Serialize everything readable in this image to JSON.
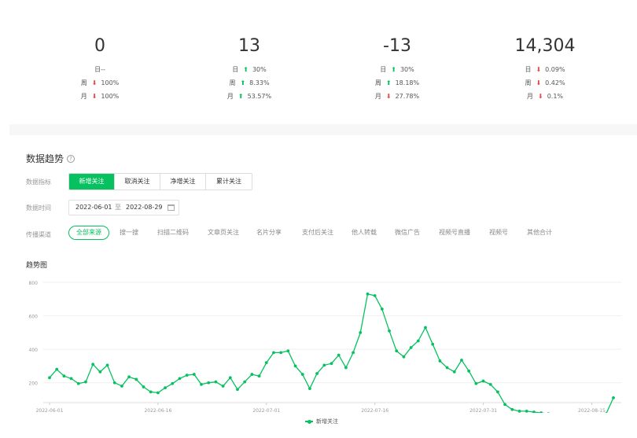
{
  "stats": [
    {
      "value": "0",
      "rows": [
        {
          "label": "日",
          "dir": "none",
          "pct": "--"
        },
        {
          "label": "周",
          "dir": "down",
          "pct": "100%"
        },
        {
          "label": "月",
          "dir": "down",
          "pct": "100%"
        }
      ]
    },
    {
      "value": "13",
      "rows": [
        {
          "label": "日",
          "dir": "up",
          "pct": "30%"
        },
        {
          "label": "周",
          "dir": "up",
          "pct": "8.33%"
        },
        {
          "label": "月",
          "dir": "up",
          "pct": "53.57%"
        }
      ]
    },
    {
      "value": "-13",
      "rows": [
        {
          "label": "日",
          "dir": "up",
          "pct": "30%"
        },
        {
          "label": "周",
          "dir": "up",
          "pct": "18.18%"
        },
        {
          "label": "月",
          "dir": "down",
          "pct": "27.78%"
        }
      ]
    },
    {
      "value": "14,304",
      "rows": [
        {
          "label": "日",
          "dir": "down",
          "pct": "0.09%"
        },
        {
          "label": "周",
          "dir": "down",
          "pct": "0.42%"
        },
        {
          "label": "月",
          "dir": "down",
          "pct": "0.1%"
        }
      ]
    }
  ],
  "section": {
    "title": "数据趋势",
    "help_icon": "question-circle-icon"
  },
  "filters": {
    "metric_label": "数据指标",
    "metrics": [
      "新增关注",
      "取消关注",
      "净增关注",
      "累计关注"
    ],
    "active_metric": 0,
    "time_label": "数据时间",
    "date_start": "2022-06-01",
    "date_sep": "至",
    "date_end": "2022-08-29",
    "source_label": "传播渠道",
    "sources": [
      "全部来源",
      "搜一搜",
      "扫描二维码",
      "文章页关注",
      "名片分享",
      "支付后关注",
      "他人转载",
      "微信广告",
      "视频号直播",
      "视频号",
      "其他合计"
    ],
    "active_source": 0
  },
  "chart_title": "趋势图",
  "colors": {
    "accent": "#07c160",
    "up": "#07c160",
    "down": "#e24c4c"
  },
  "chart_data": {
    "type": "line",
    "x_tick_labels": [
      "2022-06-01",
      "2022-06-16",
      "2022-07-01",
      "2022-07-16",
      "2022-07-31",
      "2022-08-15"
    ],
    "y_ticks": [
      200,
      400,
      600,
      800
    ],
    "ylim": [
      100,
      800
    ],
    "grid": true,
    "legend": "bottom-center",
    "series": [
      {
        "name": "新增关注",
        "values": [
          230,
          280,
          240,
          225,
          195,
          205,
          310,
          265,
          305,
          200,
          180,
          235,
          220,
          175,
          145,
          140,
          170,
          195,
          225,
          245,
          250,
          190,
          200,
          205,
          180,
          230,
          160,
          205,
          250,
          240,
          320,
          380,
          380,
          390,
          300,
          250,
          165,
          255,
          305,
          315,
          365,
          290,
          380,
          500,
          730,
          720,
          640,
          510,
          390,
          355,
          410,
          450,
          530,
          430,
          330,
          290,
          265,
          335,
          270,
          195,
          210,
          190,
          145,
          70,
          40,
          30,
          30,
          25,
          20,
          15,
          5,
          10,
          10,
          10,
          10,
          10,
          10,
          15,
          110
        ]
      }
    ]
  }
}
